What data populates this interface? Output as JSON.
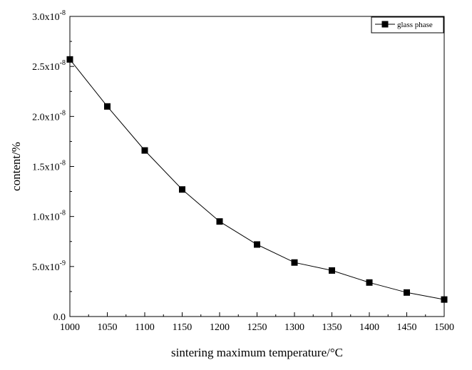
{
  "chart_data": {
    "type": "line",
    "title": "",
    "xlabel": "sintering maximum temperature/°C",
    "ylabel": "content/%",
    "xlim": [
      1000,
      1500
    ],
    "ylim": [
      0,
      3e-08
    ],
    "x": [
      1000,
      1050,
      1100,
      1150,
      1200,
      1250,
      1300,
      1350,
      1400,
      1450,
      1500
    ],
    "series": [
      {
        "name": "glass phase",
        "marker": "square",
        "color": "#000000",
        "values": [
          2.57e-08,
          2.1e-08,
          1.66e-08,
          1.27e-08,
          9.5e-09,
          7.2e-09,
          5.4e-09,
          4.6e-09,
          3.4e-09,
          2.4e-09,
          1.7e-09
        ]
      }
    ],
    "x_ticks": [
      {
        "value": 1000,
        "label": "1000"
      },
      {
        "value": 1050,
        "label": "1050"
      },
      {
        "value": 1100,
        "label": "1100"
      },
      {
        "value": 1150,
        "label": "1150"
      },
      {
        "value": 1200,
        "label": "1200"
      },
      {
        "value": 1250,
        "label": "1250"
      },
      {
        "value": 1300,
        "label": "1300"
      },
      {
        "value": 1350,
        "label": "1350"
      },
      {
        "value": 1400,
        "label": "1400"
      },
      {
        "value": 1450,
        "label": "1450"
      },
      {
        "value": 1500,
        "label": "1500"
      }
    ],
    "y_ticks": [
      {
        "value": 0,
        "mantissa": "0.0",
        "exp": ""
      },
      {
        "value": 5e-09,
        "mantissa": "5.0x10",
        "exp": "-9"
      },
      {
        "value": 1e-08,
        "mantissa": "1.0x10",
        "exp": "-8"
      },
      {
        "value": 1.5e-08,
        "mantissa": "1.5x10",
        "exp": "-8"
      },
      {
        "value": 2e-08,
        "mantissa": "2.0x10",
        "exp": "-8"
      },
      {
        "value": 2.5e-08,
        "mantissa": "2.5x10",
        "exp": "-8"
      },
      {
        "value": 3e-08,
        "mantissa": "3.0x10",
        "exp": "-8"
      }
    ],
    "legend": {
      "position": "top-right"
    },
    "grid": false
  }
}
